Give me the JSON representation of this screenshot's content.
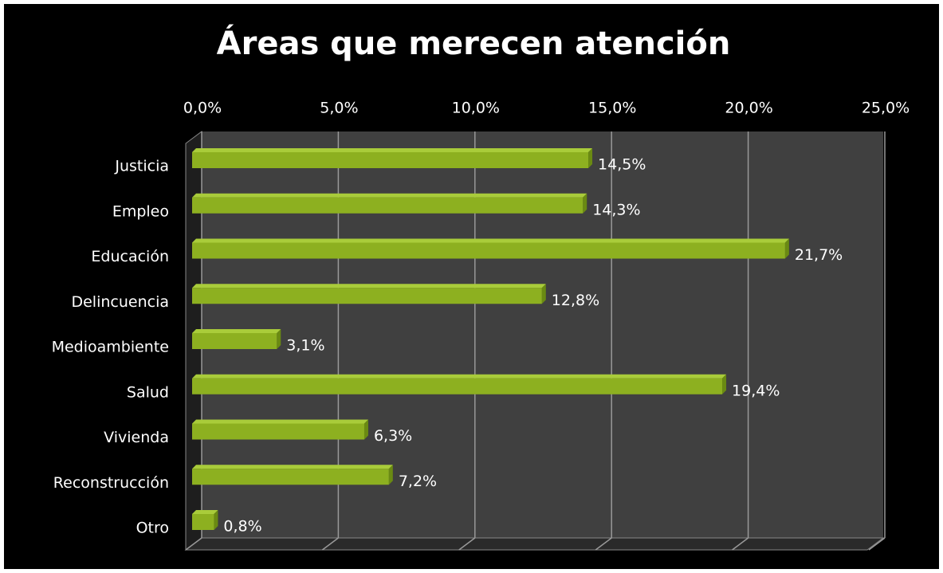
{
  "chart_data": {
    "type": "bar",
    "orientation": "horizontal",
    "title": "Áreas que merecen atención",
    "categories": [
      "Justicia",
      "Empleo",
      "Educación",
      "Delincuencia",
      "Medioambiente",
      "Salud",
      "Vivienda",
      "Reconstrucción",
      "Otro"
    ],
    "values": [
      14.5,
      14.3,
      21.7,
      12.8,
      3.1,
      19.4,
      6.3,
      7.2,
      0.8
    ],
    "value_labels": [
      "14,5%",
      "14,3%",
      "21,7%",
      "12,8%",
      "3,1%",
      "19,4%",
      "6,3%",
      "7,2%",
      "0,8%"
    ],
    "color": "#8db020",
    "xlim": [
      0,
      25
    ],
    "xticks": [
      {
        "value": 0,
        "label": "0,0%"
      },
      {
        "value": 5,
        "label": "5,0%"
      },
      {
        "value": 10,
        "label": "10,0%"
      },
      {
        "value": 15,
        "label": "15,0%"
      },
      {
        "value": 20,
        "label": "20,0%"
      },
      {
        "value": 25,
        "label": "25,0%"
      }
    ],
    "grid": true
  }
}
